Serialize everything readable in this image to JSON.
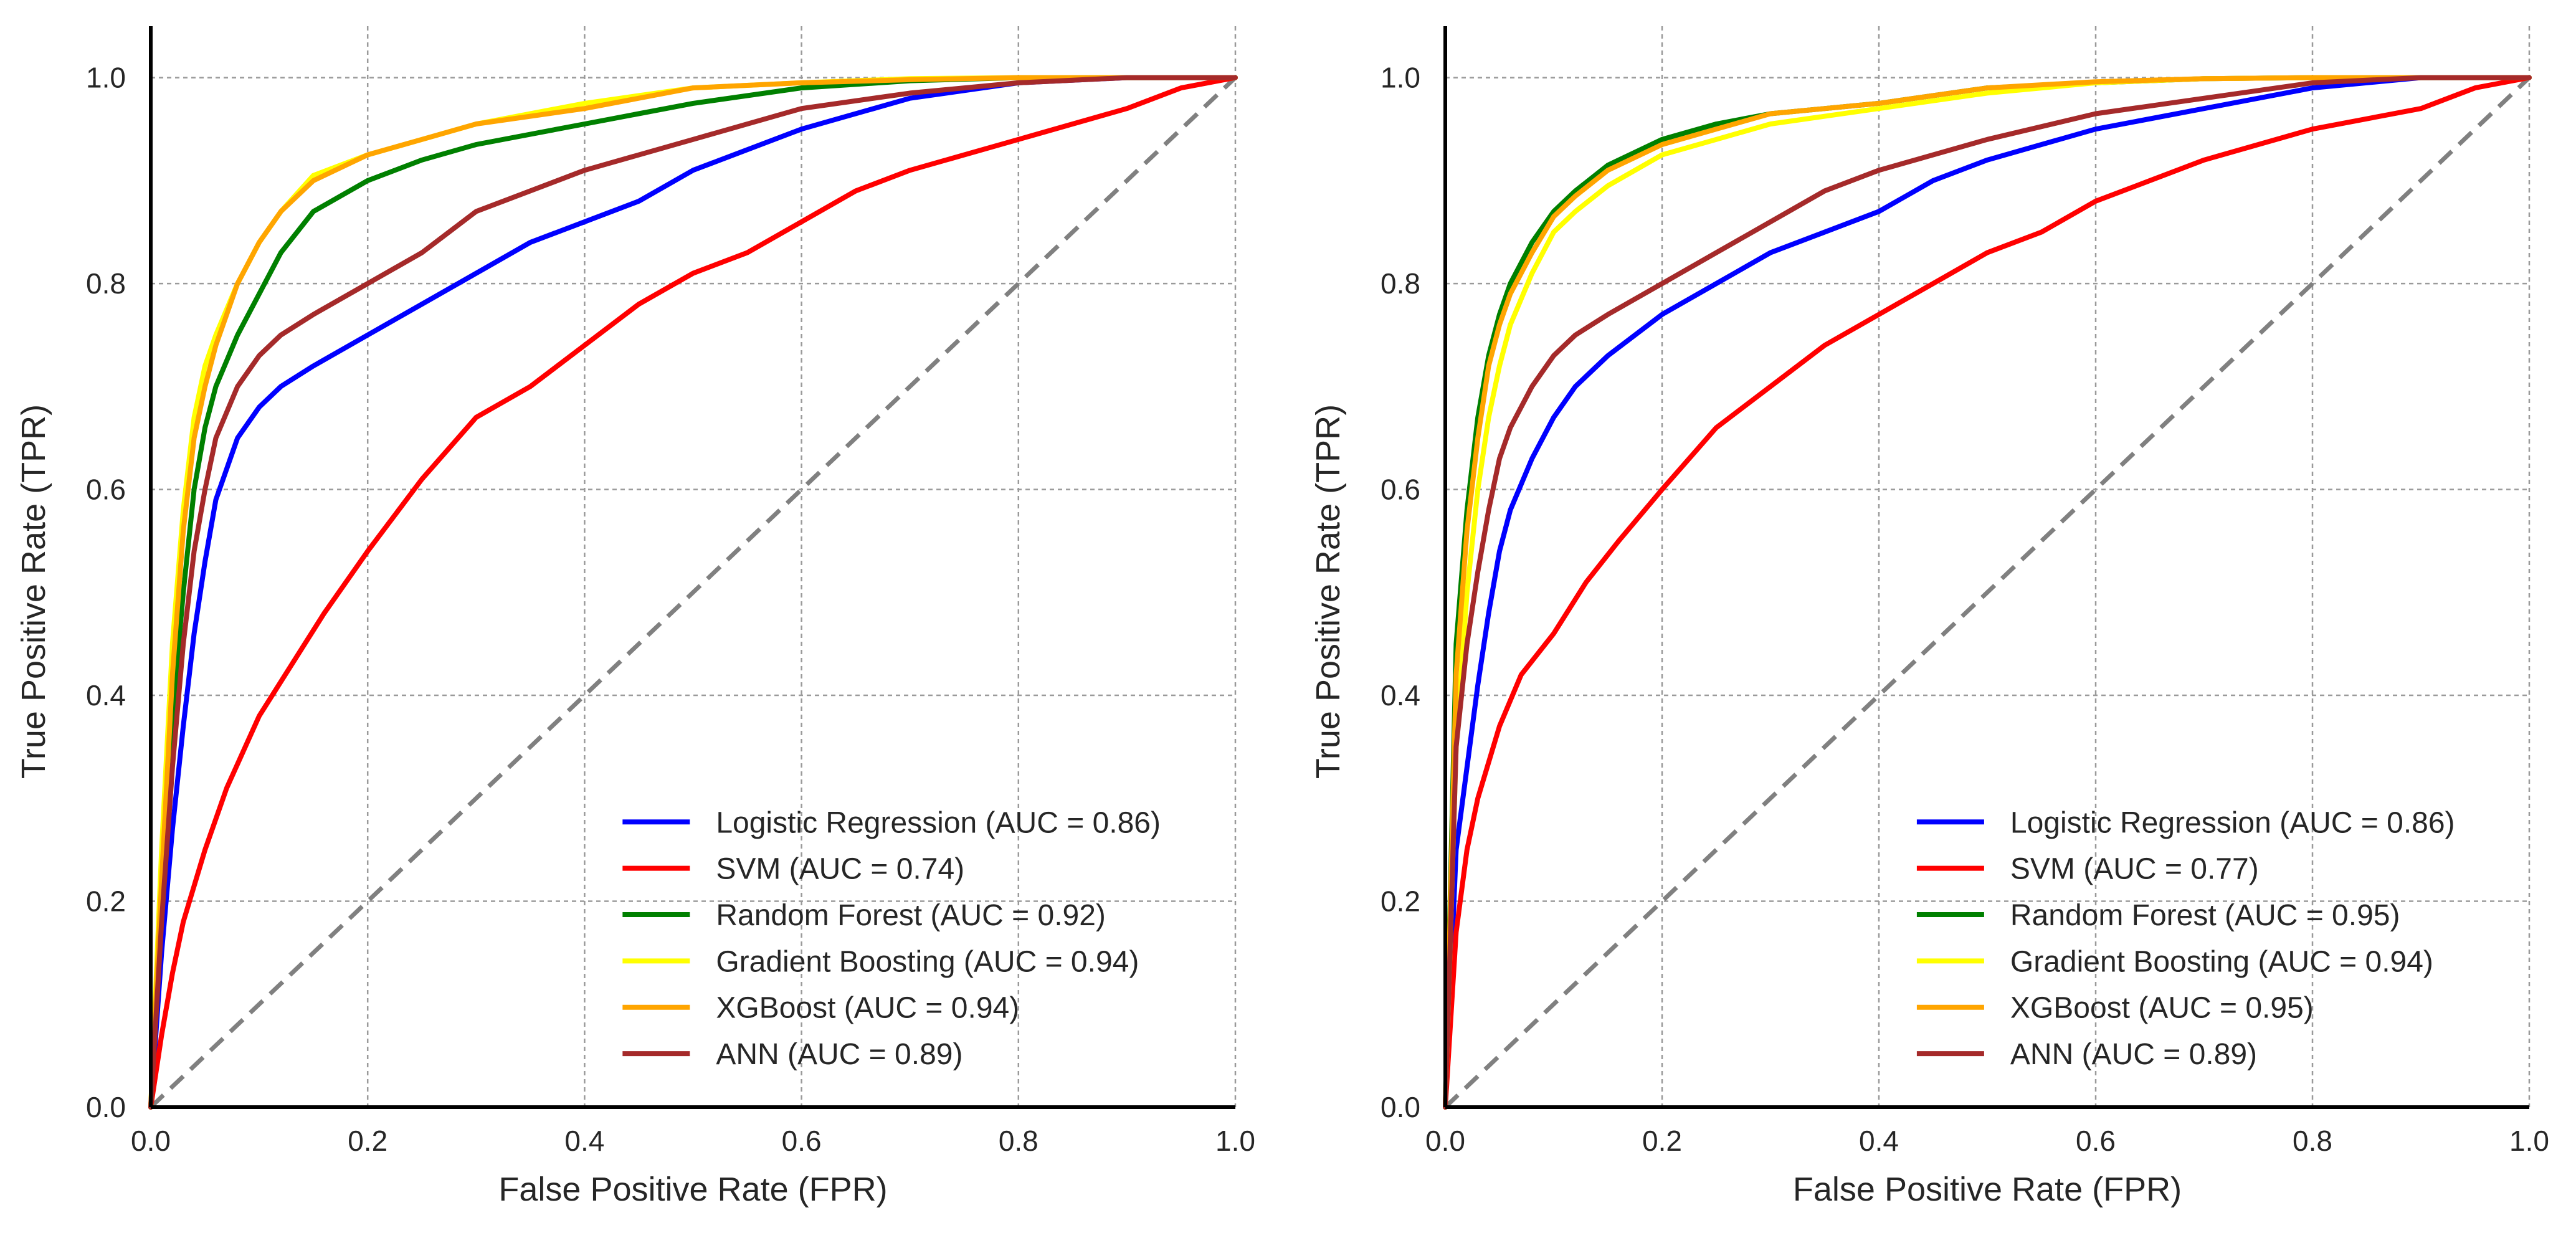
{
  "chart_data": [
    {
      "type": "line",
      "title": "",
      "xlabel": "False Positive Rate (FPR)",
      "ylabel": "True Positive Rate (TPR)",
      "xlim": [
        0,
        1
      ],
      "ylim": [
        0,
        1.05
      ],
      "xticks": [
        "0.0",
        "0.2",
        "0.4",
        "0.6",
        "0.8",
        "1.0"
      ],
      "yticks": [
        "0.0",
        "0.2",
        "0.4",
        "0.6",
        "0.8",
        "1.0"
      ],
      "grid": true,
      "legend_position": "lower-right",
      "diagonal": {
        "name": "chance",
        "x": [
          0,
          1
        ],
        "y": [
          0,
          1
        ],
        "color": "#808080",
        "style": "dashed"
      },
      "series": [
        {
          "name": "Logistic Regression",
          "label": "Logistic Regression (AUC = 0.86)",
          "auc": 0.86,
          "color": "#0000ff",
          "x": [
            0,
            0.01,
            0.02,
            0.03,
            0.04,
            0.05,
            0.06,
            0.08,
            0.1,
            0.12,
            0.15,
            0.2,
            0.25,
            0.3,
            0.35,
            0.4,
            0.45,
            0.5,
            0.6,
            0.7,
            0.8,
            0.9,
            1.0
          ],
          "y": [
            0,
            0.15,
            0.27,
            0.37,
            0.46,
            0.53,
            0.59,
            0.65,
            0.68,
            0.7,
            0.72,
            0.75,
            0.78,
            0.81,
            0.84,
            0.86,
            0.88,
            0.91,
            0.95,
            0.98,
            0.995,
            1.0,
            1.0
          ]
        },
        {
          "name": "SVM",
          "label": "SVM (AUC = 0.74)",
          "auc": 0.74,
          "color": "#ff0000",
          "x": [
            0,
            0.01,
            0.02,
            0.03,
            0.05,
            0.07,
            0.1,
            0.13,
            0.16,
            0.2,
            0.25,
            0.3,
            0.35,
            0.4,
            0.45,
            0.5,
            0.55,
            0.6,
            0.65,
            0.7,
            0.8,
            0.9,
            0.95,
            1.0
          ],
          "y": [
            0,
            0.07,
            0.13,
            0.18,
            0.25,
            0.31,
            0.38,
            0.43,
            0.48,
            0.54,
            0.61,
            0.67,
            0.7,
            0.74,
            0.78,
            0.81,
            0.83,
            0.86,
            0.89,
            0.91,
            0.94,
            0.97,
            0.99,
            1.0
          ]
        },
        {
          "name": "Random Forest",
          "label": "Random Forest (AUC = 0.92)",
          "auc": 0.92,
          "color": "#008000",
          "x": [
            0,
            0.01,
            0.02,
            0.03,
            0.04,
            0.05,
            0.06,
            0.08,
            0.1,
            0.12,
            0.15,
            0.2,
            0.25,
            0.3,
            0.4,
            0.5,
            0.6,
            0.7,
            0.8,
            1.0
          ],
          "y": [
            0,
            0.2,
            0.38,
            0.5,
            0.6,
            0.66,
            0.7,
            0.75,
            0.79,
            0.83,
            0.87,
            0.9,
            0.92,
            0.935,
            0.955,
            0.975,
            0.99,
            0.997,
            1.0,
            1.0
          ]
        },
        {
          "name": "Gradient Boosting",
          "label": "Gradient Boosting (AUC = 0.94)",
          "auc": 0.94,
          "color": "#ffff00",
          "x": [
            0,
            0.01,
            0.02,
            0.03,
            0.04,
            0.05,
            0.06,
            0.08,
            0.1,
            0.12,
            0.15,
            0.2,
            0.25,
            0.3,
            0.4,
            0.5,
            0.6,
            0.7,
            0.8,
            1.0
          ],
          "y": [
            0,
            0.25,
            0.45,
            0.58,
            0.67,
            0.72,
            0.75,
            0.8,
            0.84,
            0.87,
            0.905,
            0.925,
            0.94,
            0.955,
            0.975,
            0.99,
            0.995,
            0.999,
            1.0,
            1.0
          ]
        },
        {
          "name": "XGBoost",
          "label": "XGBoost (AUC = 0.94)",
          "auc": 0.94,
          "color": "#ffa500",
          "x": [
            0,
            0.01,
            0.02,
            0.03,
            0.04,
            0.05,
            0.06,
            0.08,
            0.1,
            0.12,
            0.15,
            0.2,
            0.25,
            0.3,
            0.4,
            0.5,
            0.6,
            0.7,
            0.8,
            1.0
          ],
          "y": [
            0,
            0.22,
            0.42,
            0.56,
            0.65,
            0.7,
            0.74,
            0.8,
            0.84,
            0.87,
            0.9,
            0.925,
            0.94,
            0.955,
            0.97,
            0.99,
            0.995,
            0.998,
            1.0,
            1.0
          ]
        },
        {
          "name": "ANN",
          "label": "ANN (AUC = 0.89)",
          "auc": 0.89,
          "color": "#a52a2a",
          "x": [
            0,
            0.01,
            0.02,
            0.03,
            0.04,
            0.05,
            0.06,
            0.08,
            0.1,
            0.12,
            0.15,
            0.2,
            0.25,
            0.3,
            0.35,
            0.4,
            0.5,
            0.6,
            0.7,
            0.8,
            0.9,
            1.0
          ],
          "y": [
            0,
            0.18,
            0.33,
            0.45,
            0.54,
            0.6,
            0.65,
            0.7,
            0.73,
            0.75,
            0.77,
            0.8,
            0.83,
            0.87,
            0.89,
            0.91,
            0.94,
            0.97,
            0.985,
            0.995,
            1.0,
            1.0
          ]
        }
      ]
    },
    {
      "type": "line",
      "title": "",
      "xlabel": "False Positive Rate (FPR)",
      "ylabel": "True Positive Rate (TPR)",
      "xlim": [
        0,
        1
      ],
      "ylim": [
        0,
        1.05
      ],
      "xticks": [
        "0.0",
        "0.2",
        "0.4",
        "0.6",
        "0.8",
        "1.0"
      ],
      "yticks": [
        "0.0",
        "0.2",
        "0.4",
        "0.6",
        "0.8",
        "1.0"
      ],
      "grid": true,
      "legend_position": "lower-right",
      "diagonal": {
        "name": "chance",
        "x": [
          0,
          1
        ],
        "y": [
          0,
          1
        ],
        "color": "#808080",
        "style": "dashed"
      },
      "series": [
        {
          "name": "Logistic Regression",
          "label": "Logistic Regression (AUC = 0.86)",
          "auc": 0.86,
          "color": "#0000ff",
          "x": [
            0,
            0.01,
            0.02,
            0.03,
            0.04,
            0.05,
            0.06,
            0.08,
            0.1,
            0.12,
            0.15,
            0.2,
            0.25,
            0.3,
            0.35,
            0.4,
            0.45,
            0.5,
            0.6,
            0.7,
            0.8,
            0.9,
            1.0
          ],
          "y": [
            0,
            0.25,
            0.33,
            0.41,
            0.48,
            0.54,
            0.58,
            0.63,
            0.67,
            0.7,
            0.73,
            0.77,
            0.8,
            0.83,
            0.85,
            0.87,
            0.9,
            0.92,
            0.95,
            0.97,
            0.99,
            1.0,
            1.0
          ]
        },
        {
          "name": "SVM",
          "label": "SVM (AUC = 0.77)",
          "auc": 0.77,
          "color": "#ff0000",
          "x": [
            0,
            0.01,
            0.02,
            0.03,
            0.05,
            0.07,
            0.1,
            0.13,
            0.16,
            0.2,
            0.25,
            0.3,
            0.35,
            0.4,
            0.45,
            0.5,
            0.55,
            0.6,
            0.65,
            0.7,
            0.8,
            0.9,
            0.95,
            1.0
          ],
          "y": [
            0,
            0.17,
            0.25,
            0.3,
            0.37,
            0.42,
            0.46,
            0.51,
            0.55,
            0.6,
            0.66,
            0.7,
            0.74,
            0.77,
            0.8,
            0.83,
            0.85,
            0.88,
            0.9,
            0.92,
            0.95,
            0.97,
            0.99,
            1.0
          ]
        },
        {
          "name": "Random Forest",
          "label": "Random Forest (AUC = 0.95)",
          "auc": 0.95,
          "color": "#008000",
          "x": [
            0,
            0.01,
            0.02,
            0.03,
            0.04,
            0.05,
            0.06,
            0.08,
            0.1,
            0.12,
            0.15,
            0.2,
            0.25,
            0.3,
            0.4,
            0.5,
            0.6,
            0.7,
            0.8,
            1.0
          ],
          "y": [
            0,
            0.45,
            0.58,
            0.67,
            0.73,
            0.77,
            0.8,
            0.84,
            0.87,
            0.89,
            0.915,
            0.94,
            0.955,
            0.965,
            0.975,
            0.99,
            0.995,
            0.999,
            1.0,
            1.0
          ]
        },
        {
          "name": "Gradient Boosting",
          "label": "Gradient Boosting (AUC = 0.94)",
          "auc": 0.94,
          "color": "#ffff00",
          "x": [
            0,
            0.01,
            0.02,
            0.03,
            0.04,
            0.05,
            0.06,
            0.08,
            0.1,
            0.12,
            0.15,
            0.2,
            0.25,
            0.3,
            0.4,
            0.5,
            0.6,
            0.7,
            0.8,
            1.0
          ],
          "y": [
            0,
            0.35,
            0.5,
            0.6,
            0.67,
            0.72,
            0.76,
            0.81,
            0.85,
            0.87,
            0.895,
            0.925,
            0.94,
            0.955,
            0.97,
            0.985,
            0.995,
            0.999,
            1.0,
            1.0
          ]
        },
        {
          "name": "XGBoost",
          "label": "XGBoost (AUC = 0.95)",
          "auc": 0.95,
          "color": "#ffa500",
          "x": [
            0,
            0.01,
            0.02,
            0.03,
            0.04,
            0.05,
            0.06,
            0.08,
            0.1,
            0.12,
            0.15,
            0.2,
            0.25,
            0.3,
            0.4,
            0.5,
            0.6,
            0.7,
            0.8,
            1.0
          ],
          "y": [
            0,
            0.42,
            0.56,
            0.65,
            0.72,
            0.76,
            0.79,
            0.83,
            0.865,
            0.885,
            0.91,
            0.935,
            0.95,
            0.965,
            0.975,
            0.99,
            0.996,
            0.999,
            1.0,
            1.0
          ]
        },
        {
          "name": "ANN",
          "label": "ANN (AUC = 0.89)",
          "auc": 0.89,
          "color": "#a52a2a",
          "x": [
            0,
            0.01,
            0.02,
            0.03,
            0.04,
            0.05,
            0.06,
            0.08,
            0.1,
            0.12,
            0.15,
            0.2,
            0.25,
            0.3,
            0.35,
            0.4,
            0.5,
            0.6,
            0.7,
            0.8,
            0.9,
            1.0
          ],
          "y": [
            0,
            0.35,
            0.45,
            0.52,
            0.58,
            0.63,
            0.66,
            0.7,
            0.73,
            0.75,
            0.77,
            0.8,
            0.83,
            0.86,
            0.89,
            0.91,
            0.94,
            0.965,
            0.98,
            0.995,
            1.0,
            1.0
          ]
        }
      ]
    }
  ]
}
